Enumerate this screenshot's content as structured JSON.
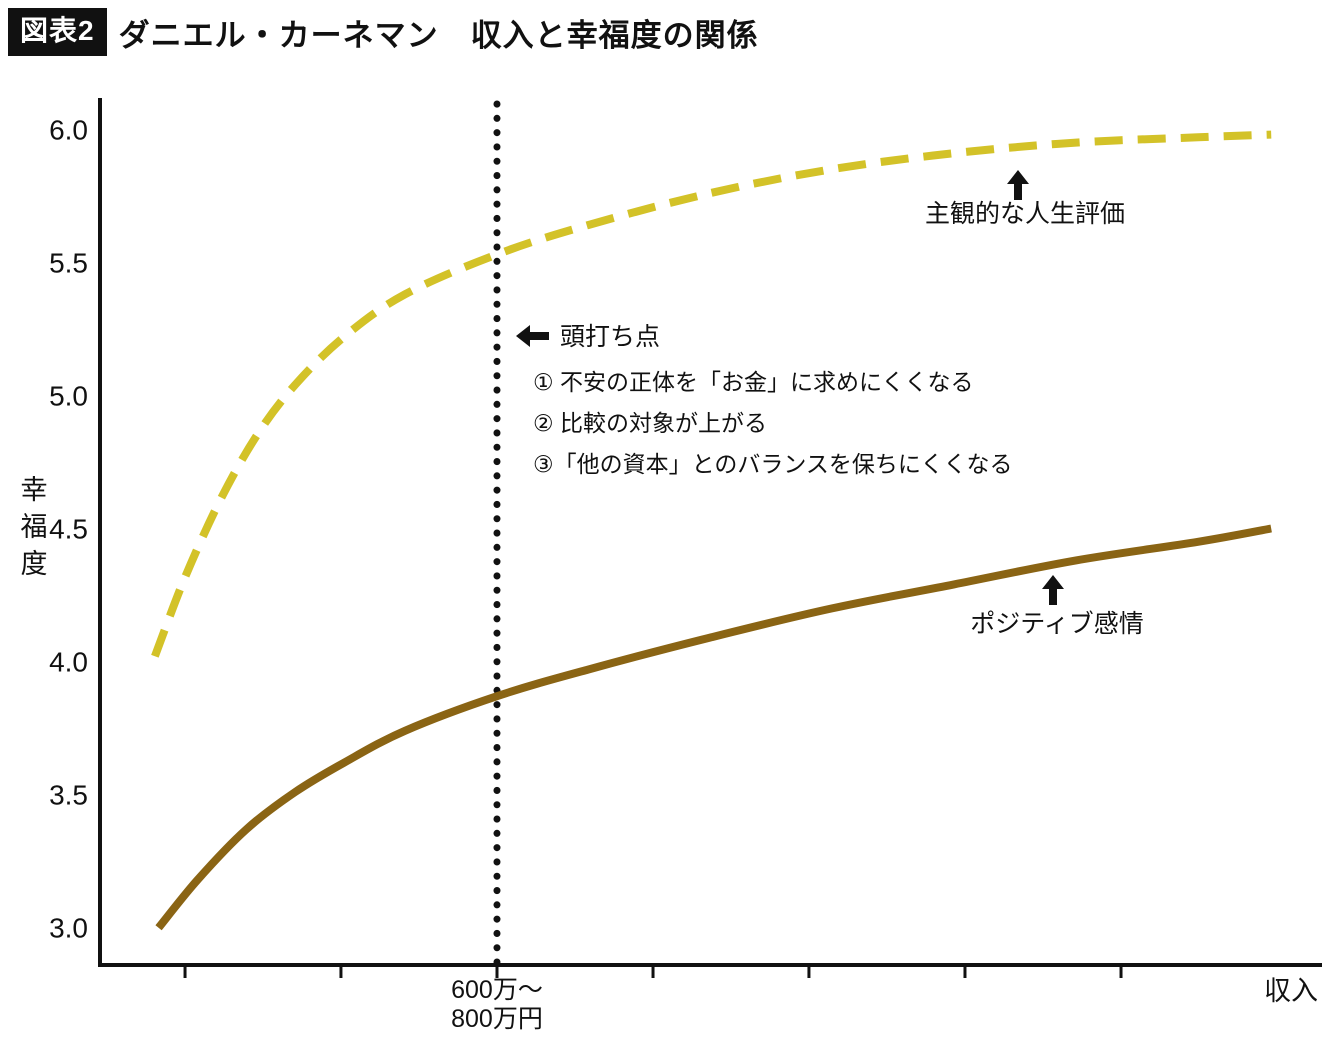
{
  "header": {
    "badge": "図表2",
    "title": "ダニエル・カーネマン　収入と幸福度の関係"
  },
  "chart_data": {
    "type": "line",
    "title": "ダニエル・カーネマン　収入と幸福度の関係",
    "ylabel": "幸福度",
    "xlabel": "収入",
    "ylim": [
      2.86,
      6.11
    ],
    "y_ticks": [
      6.0,
      5.5,
      5.0,
      4.5,
      4.0,
      3.5,
      3.0
    ],
    "x_tick_positions": [
      0.0697,
      0.1975,
      0.3254,
      0.4533,
      0.5811,
      0.709,
      0.8369
    ],
    "grid": false,
    "legend_position": "inline-annotations",
    "axis_color": "#111111",
    "text_color": "#111111",
    "plateau": {
      "x": 0.3254,
      "line_style": "dotted-black-vertical",
      "label_lines": [
        "600万〜",
        "800万円"
      ],
      "annotation": "頭打ち点",
      "notes": [
        "① 不安の正体を「お金」に求めにくくなる",
        "② 比較の対象が上がる",
        "③「他の資本」とのバランスを保ちにくくなる"
      ]
    },
    "series": [
      {
        "name": "主観的な人生評価",
        "style": "dashed",
        "color": "#d3c228",
        "x": [
          0.045,
          0.07,
          0.1,
          0.13,
          0.16,
          0.2,
          0.25,
          0.3254,
          0.4,
          0.5,
          0.6,
          0.7,
          0.8,
          0.9,
          0.96
        ],
        "y": [
          4.02,
          4.32,
          4.62,
          4.86,
          5.04,
          5.22,
          5.38,
          5.53,
          5.64,
          5.76,
          5.85,
          5.91,
          5.95,
          5.97,
          5.98
        ]
      },
      {
        "name": "ポジティブ感情",
        "style": "solid",
        "color": "#8a6414",
        "x": [
          0.048,
          0.08,
          0.12,
          0.16,
          0.2,
          0.25,
          0.3254,
          0.4,
          0.5,
          0.6,
          0.7,
          0.8,
          0.9,
          0.96
        ],
        "y": [
          3.0,
          3.18,
          3.37,
          3.51,
          3.62,
          3.74,
          3.87,
          3.97,
          4.09,
          4.2,
          4.29,
          4.38,
          4.45,
          4.5
        ]
      }
    ]
  }
}
